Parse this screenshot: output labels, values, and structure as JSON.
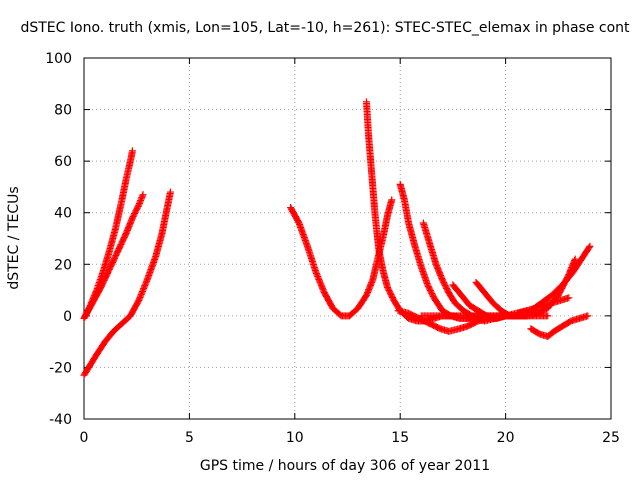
{
  "chart_data": {
    "type": "scatter",
    "title": "dSTEC Iono. truth (xmis, Lon=105, Lat=-10, h=261): STEC-STEC_elemax in phase cont",
    "xlabel": "GPS time / hours of day 306 of year 2011",
    "ylabel": "dSTEC  / TECUs",
    "xlim": [
      0,
      25
    ],
    "ylim": [
      -40,
      100
    ],
    "xticks": [
      0,
      5,
      10,
      15,
      20,
      25
    ],
    "yticks": [
      -40,
      -20,
      0,
      20,
      40,
      60,
      80,
      100
    ],
    "grid": true,
    "marker": "plus",
    "color": "#ff0000",
    "series": [
      {
        "x": [
          0.0,
          0.3,
          0.6,
          0.9,
          1.2,
          1.5,
          1.8,
          2.0,
          2.2,
          2.3
        ],
        "y": [
          -1,
          4,
          10,
          17,
          25,
          34,
          45,
          53,
          60,
          64
        ]
      },
      {
        "x": [
          0.0,
          0.4,
          0.8,
          1.2,
          1.6,
          2.0,
          2.3,
          2.6,
          2.8
        ],
        "y": [
          -1,
          5,
          11,
          18,
          25,
          32,
          38,
          43,
          47
        ]
      },
      {
        "x": [
          0.0,
          0.3,
          0.6,
          1.0,
          1.4,
          1.8,
          2.2,
          2.6,
          3.0,
          3.4,
          3.7,
          3.9,
          4.1
        ],
        "y": [
          -23,
          -19,
          -15,
          -10,
          -6,
          -3,
          0,
          6,
          14,
          23,
          32,
          40,
          48
        ]
      },
      {
        "x": [
          9.8,
          10.2,
          10.6,
          11.0,
          11.4,
          11.8,
          12.2,
          12.6,
          13.0,
          13.4,
          13.7,
          13.9,
          14.2,
          14.4,
          14.6
        ],
        "y": [
          42,
          36,
          27,
          17,
          9,
          3,
          0,
          0,
          3,
          8,
          14,
          21,
          31,
          39,
          45
        ]
      },
      {
        "x": [
          13.4,
          13.5,
          13.6,
          13.7,
          13.8,
          13.9,
          14.0,
          14.2,
          14.4,
          14.7,
          15.0,
          15.4,
          15.8,
          16.2,
          16.6,
          17.0,
          17.4,
          17.8,
          18.2,
          18.6,
          19.0,
          19.5,
          20.0,
          20.5,
          21.0,
          21.5,
          22.0,
          22.5,
          23.0,
          23.3
        ],
        "y": [
          83,
          70,
          60,
          50,
          40,
          32,
          25,
          17,
          11,
          6,
          2,
          -1,
          -2,
          -2,
          -1,
          0,
          0,
          0,
          0,
          0,
          0,
          0,
          0,
          0,
          0,
          1,
          3,
          8,
          16,
          22
        ]
      },
      {
        "x": [
          15.0,
          15.2,
          15.4,
          15.7,
          16.0,
          16.3,
          16.6,
          17.0,
          17.4,
          17.8,
          18.2,
          18.6,
          19.0,
          19.5,
          20.0,
          20.5,
          21.0
        ],
        "y": [
          51,
          45,
          36,
          27,
          19,
          12,
          7,
          2,
          0,
          -1,
          -1,
          0,
          0,
          0,
          0,
          0,
          0
        ]
      },
      {
        "x": [
          16.1,
          16.4,
          16.7,
          17.0,
          17.3,
          17.6,
          18.0,
          18.4,
          18.8,
          19.2,
          19.6,
          20.0,
          20.4,
          20.8,
          21.2,
          21.6,
          22.0
        ],
        "y": [
          36,
          28,
          20,
          14,
          9,
          5,
          2,
          0,
          -1,
          -1,
          -1,
          0,
          0,
          0,
          0,
          0,
          0
        ]
      },
      {
        "x": [
          14.9,
          15.4,
          15.9,
          16.4,
          16.9,
          17.3,
          17.8,
          18.2,
          18.7,
          19.2,
          19.7,
          20.2,
          20.7,
          21.2,
          21.7,
          22.2,
          22.7,
          23.2,
          23.6,
          24.0
        ],
        "y": [
          2,
          1,
          -1,
          -3,
          -5,
          -6,
          -5,
          -4,
          -2,
          -1,
          0,
          0,
          0,
          2,
          5,
          8,
          12,
          17,
          22,
          27
        ]
      },
      {
        "x": [
          17.5,
          17.9,
          18.3,
          18.7,
          19.1,
          19.5,
          20.0,
          20.5,
          21.0
        ],
        "y": [
          12,
          8,
          4,
          2,
          0,
          -1,
          0,
          1,
          2
        ]
      },
      {
        "x": [
          18.6,
          19.0,
          19.4,
          19.8,
          20.2,
          20.6,
          21.0,
          21.4
        ],
        "y": [
          13,
          9,
          5,
          2,
          0,
          0,
          1,
          2
        ]
      },
      {
        "x": [
          16.0,
          16.5,
          17.0,
          17.5,
          18.0,
          18.5,
          19.0,
          19.5,
          20.0,
          20.5,
          21.0
        ],
        "y": [
          0,
          0,
          0,
          0,
          -1,
          -1,
          -2,
          -1,
          0,
          0,
          0
        ]
      },
      {
        "x": [
          21.2,
          21.6,
          22.0,
          22.3,
          22.7,
          23.1,
          23.5,
          23.9
        ],
        "y": [
          -5,
          -7,
          -8,
          -6,
          -4,
          -2,
          -1,
          0
        ]
      },
      {
        "x": [
          20.6,
          21.0,
          21.4,
          21.8,
          22.2,
          22.6,
          23.0
        ],
        "y": [
          1,
          2,
          3,
          4,
          5,
          6,
          7
        ]
      }
    ]
  }
}
